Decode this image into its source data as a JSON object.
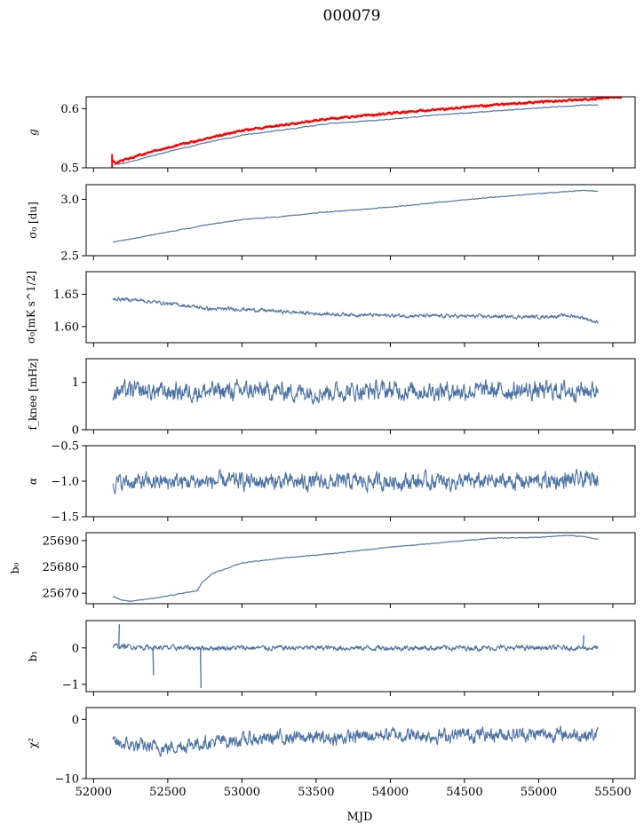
{
  "title": "000079",
  "chart_data": {
    "type": "line",
    "xlabel": "MJD",
    "xlim": [
      51950,
      55650
    ],
    "xticks": [
      52000,
      52500,
      53000,
      53500,
      54000,
      54500,
      55000,
      55500
    ],
    "panels": [
      {
        "id": "g",
        "ylabel": "g",
        "ylim": [
          0.5,
          0.62
        ],
        "yticks": [
          0.5,
          0.6
        ],
        "ytick_labels": [
          "0.5",
          "0.6"
        ],
        "series": [
          {
            "color": "#ff0000",
            "noise": 0.0012,
            "x": [
              52120,
              52150,
              52200,
              52300,
              52500,
              52800,
              53000,
              53300,
              53600,
              54000,
              54300,
              54700,
              55000,
              55300,
              55560
            ],
            "y": [
              0.514,
              0.508,
              0.512,
              0.521,
              0.534,
              0.552,
              0.563,
              0.573,
              0.583,
              0.592,
              0.598,
              0.606,
              0.611,
              0.615,
              0.62
            ]
          },
          {
            "color": "#4c72a4",
            "noise": 0.0006,
            "x": [
              52140,
              52200,
              52300,
              52500,
              52800,
              53000,
              53300,
              53600,
              54000,
              54300,
              54700,
              55000,
              55300,
              55400
            ],
            "y": [
              0.506,
              0.507,
              0.514,
              0.527,
              0.545,
              0.555,
              0.565,
              0.575,
              0.582,
              0.589,
              0.596,
              0.601,
              0.606,
              0.606
            ]
          }
        ]
      },
      {
        "id": "sigma0-du",
        "ylabel": "σ₀ [du]",
        "ylim": [
          2.5,
          3.13
        ],
        "yticks": [
          2.5,
          3.0
        ],
        "ytick_labels": [
          "2.5",
          "3.0"
        ],
        "series": [
          {
            "color": "#4c72a4",
            "noise": 0.003,
            "x": [
              52130,
              52300,
              52500,
              52800,
              53000,
              53300,
              53500,
              54000,
              54300,
              54700,
              55000,
              55200,
              55300,
              55400
            ],
            "y": [
              2.62,
              2.66,
              2.71,
              2.78,
              2.82,
              2.85,
              2.88,
              2.93,
              2.97,
              3.02,
              3.05,
              3.07,
              3.08,
              3.07
            ]
          }
        ]
      },
      {
        "id": "sigma0-mks",
        "ylabel": "σ₀[mK s^1/2]",
        "ylim": [
          1.575,
          1.685
        ],
        "yticks": [
          1.6,
          1.65
        ],
        "ytick_labels": [
          "1.60",
          "1.65"
        ],
        "series": [
          {
            "color": "#4c72a4",
            "noise": 0.0022,
            "x": [
              52130,
              52300,
              52600,
              52800,
              53000,
              53500,
              54000,
              54500,
              55000,
              55200,
              55300,
              55400
            ],
            "y": [
              1.643,
              1.641,
              1.633,
              1.627,
              1.627,
              1.62,
              1.617,
              1.616,
              1.615,
              1.617,
              1.614,
              1.606
            ]
          }
        ]
      },
      {
        "id": "fknee",
        "ylabel": "f_knee [mHz]",
        "ylim": [
          0,
          1.5
        ],
        "yticks": [
          0,
          1
        ],
        "ytick_labels": [
          "0",
          "1"
        ],
        "series": [
          {
            "color": "#4c72a4",
            "noise": 0.15,
            "x": [
              52130,
              52500,
              53000,
              53500,
              54000,
              54500,
              55000,
              55400
            ],
            "y": [
              0.82,
              0.8,
              0.82,
              0.8,
              0.83,
              0.82,
              0.82,
              0.84
            ]
          }
        ]
      },
      {
        "id": "alpha",
        "ylabel": "α",
        "ylim": [
          -1.5,
          -0.5
        ],
        "yticks": [
          -1.5,
          -1.0,
          -0.5
        ],
        "ytick_labels": [
          "−1.5",
          "−1.0",
          "−0.5"
        ],
        "series": [
          {
            "color": "#4c72a4",
            "noise": 0.09,
            "x": [
              52130,
              52500,
              53000,
              53500,
              54000,
              54500,
              55000,
              55400
            ],
            "y": [
              -1.02,
              -1.01,
              -1.0,
              -1.02,
              -1.0,
              -1.01,
              -1.0,
              -0.98
            ]
          }
        ]
      },
      {
        "id": "b0",
        "ylabel": "b₀",
        "ylim": [
          25666,
          25693
        ],
        "yticks": [
          25670,
          25680,
          25690
        ],
        "ytick_labels": [
          "25670",
          "25680",
          "25690"
        ],
        "series": [
          {
            "color": "#4c72a4",
            "noise": 0.12,
            "x": [
              52130,
              52180,
              52250,
              52400,
              52600,
              52700,
              52730,
              52800,
              53000,
              53300,
              53600,
              54000,
              54400,
              54700,
              55000,
              55200,
              55300,
              55400
            ],
            "y": [
              25669,
              25667.5,
              25667,
              25668,
              25670,
              25671,
              25674,
              25677.5,
              25681.5,
              25683.5,
              25685,
              25687.5,
              25689.5,
              25691,
              25691.2,
              25692,
              25691.5,
              25690.5
            ]
          }
        ]
      },
      {
        "id": "b1",
        "ylabel": "b₁",
        "ylim": [
          -1.2,
          0.75
        ],
        "yticks": [
          -1,
          0
        ],
        "ytick_labels": [
          "−1",
          "0"
        ],
        "series": [
          {
            "color": "#4c72a4",
            "noise": 0.055,
            "x": [
              52130,
              52500,
              53000,
              53500,
              54000,
              54500,
              55000,
              55400
            ],
            "y": [
              0.05,
              0.0,
              0.0,
              0.0,
              0.0,
              0.0,
              0.0,
              0.0
            ]
          }
        ],
        "spikes": [
          {
            "x": 52170,
            "y": 0.65
          },
          {
            "x": 52400,
            "y": -0.75
          },
          {
            "x": 52720,
            "y": -1.1
          },
          {
            "x": 55300,
            "y": 0.35
          }
        ]
      },
      {
        "id": "chi2",
        "ylabel": "χ²",
        "ylim": [
          -10,
          2
        ],
        "yticks": [
          -10,
          0
        ],
        "ytick_labels": [
          "−10",
          "0"
        ],
        "series": [
          {
            "color": "#4c72a4",
            "noise": 0.9,
            "x": [
              52130,
              52300,
              52500,
              52700,
              53000,
              53300,
              53600,
              54000,
              54300,
              54600,
              55000,
              55400
            ],
            "y": [
              -4,
              -4.5,
              -4.8,
              -4,
              -3.5,
              -3,
              -3.2,
              -2.5,
              -2.8,
              -2.5,
              -2.5,
              -2.6
            ]
          }
        ]
      }
    ]
  }
}
